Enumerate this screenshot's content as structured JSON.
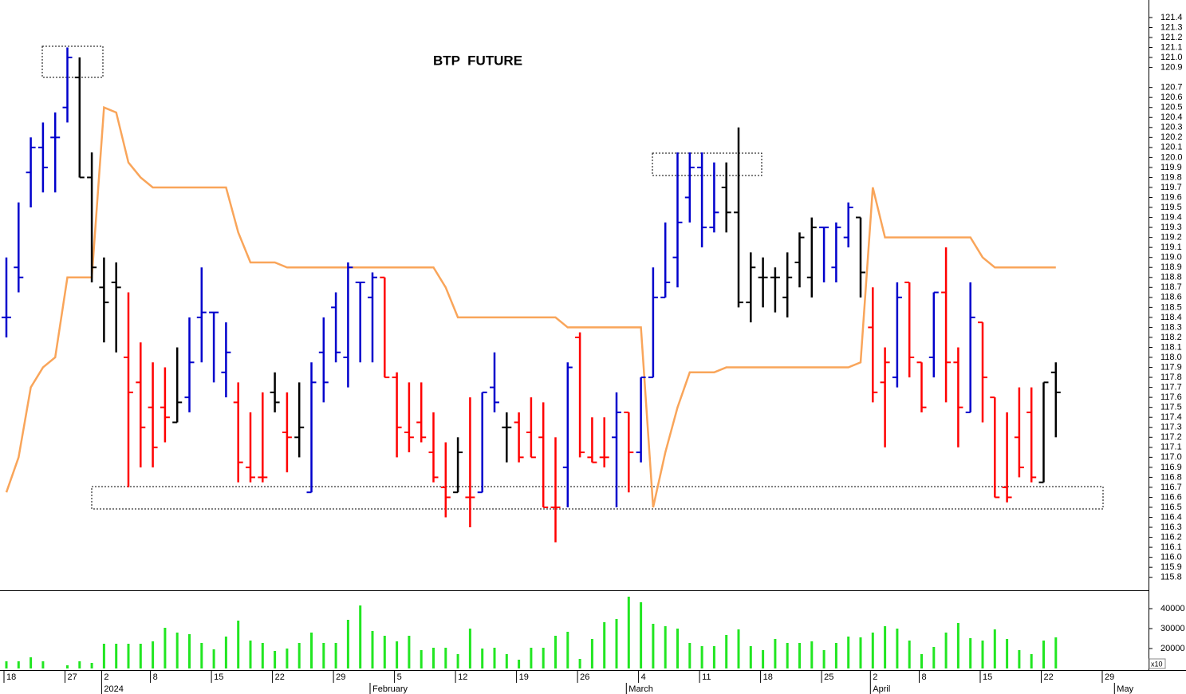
{
  "chart_data": [
    {
      "type": "ohlc",
      "title": "BTP  FUTURE",
      "categories": [
        "18",
        null,
        null,
        null,
        null,
        "27",
        null,
        null,
        "2",
        null,
        null,
        null,
        "8",
        null,
        null,
        null,
        null,
        "15",
        null,
        null,
        null,
        null,
        "22",
        null,
        null,
        null,
        null,
        "29",
        null,
        null,
        null,
        null,
        "5",
        null,
        null,
        null,
        null,
        "12",
        null,
        null,
        null,
        null,
        "19",
        null,
        null,
        null,
        null,
        "26",
        null,
        null,
        null,
        null,
        "4",
        null,
        null,
        null,
        null,
        "11",
        null,
        null,
        null,
        null,
        "18",
        null,
        null,
        null,
        null,
        "25",
        null,
        null,
        null,
        "2",
        null,
        null,
        null,
        "8",
        null,
        null,
        null,
        null,
        "15",
        null,
        null,
        null,
        null,
        "22",
        null,
        null,
        null,
        null,
        "29",
        null,
        null
      ],
      "category_groups": [
        null,
        null,
        null,
        null,
        null,
        null,
        null,
        null,
        "2024",
        null,
        null,
        null,
        null,
        null,
        null,
        null,
        null,
        null,
        null,
        null,
        null,
        null,
        null,
        null,
        null,
        null,
        null,
        null,
        null,
        null,
        "February",
        null,
        null,
        null,
        null,
        null,
        null,
        null,
        null,
        null,
        null,
        null,
        null,
        null,
        null,
        null,
        null,
        null,
        null,
        null,
        null,
        "March",
        null,
        null,
        null,
        null,
        null,
        null,
        null,
        null,
        null,
        null,
        null,
        null,
        null,
        null,
        null,
        null,
        null,
        null,
        null,
        "April",
        null,
        null,
        null,
        null,
        null,
        null,
        null,
        null,
        null,
        null,
        null,
        null,
        null,
        null,
        null,
        null,
        null,
        null,
        null,
        "May"
      ],
      "open": [
        118.4,
        118.9,
        119.85,
        120.1,
        120.2,
        120.5,
        120.8,
        119.8,
        118.7,
        118.75,
        118.0,
        117.75,
        117.5,
        117.5,
        117.35,
        117.6,
        118.4,
        118.45,
        117.85,
        117.55,
        116.9,
        116.8,
        117.65,
        117.25,
        117.2,
        116.65,
        118.05,
        118.5,
        118.0,
        118.75,
        118.6,
        118.8,
        117.8,
        117.25,
        117.35,
        117.05,
        116.7,
        116.65,
        116.6,
        116.65,
        117.7,
        117.3,
        117.35,
        117.25,
        117.2,
        116.5,
        116.9,
        118.2,
        117.0,
        117.0,
        117.2,
        117.45,
        117.05,
        117.8,
        118.6,
        119.0,
        119.6,
        119.9,
        119.3,
        119.7,
        119.45,
        118.55,
        118.8,
        118.8,
        118.6,
        118.95,
        118.8,
        119.3,
        118.9,
        119.2,
        119.4,
        118.3,
        117.75,
        117.8,
        118.75,
        117.95,
        118.0,
        118.65,
        117.95,
        117.45,
        118.35,
        117.6,
        116.7,
        117.2,
        117.45,
        116.75,
        117.85,
        null,
        null,
        null,
        null,
        null,
        null
      ],
      "high": [
        119.0,
        119.55,
        120.2,
        120.35,
        120.45,
        121.1,
        121.0,
        120.05,
        119.0,
        118.95,
        118.65,
        118.15,
        117.95,
        117.9,
        118.1,
        118.4,
        118.9,
        118.45,
        118.35,
        117.75,
        117.45,
        117.65,
        117.85,
        117.65,
        117.75,
        117.95,
        118.4,
        118.65,
        118.95,
        118.75,
        118.85,
        118.8,
        117.85,
        117.75,
        117.75,
        117.45,
        117.15,
        117.2,
        117.6,
        117.65,
        118.05,
        117.45,
        117.45,
        117.6,
        117.55,
        117.2,
        117.95,
        118.25,
        117.4,
        117.4,
        117.65,
        117.45,
        117.8,
        118.9,
        119.35,
        120.05,
        120.05,
        120.05,
        119.95,
        119.95,
        120.3,
        119.05,
        119.0,
        118.9,
        119.05,
        119.25,
        119.4,
        119.3,
        119.35,
        119.55,
        119.4,
        118.7,
        118.1,
        118.75,
        118.75,
        117.95,
        118.65,
        119.1,
        118.1,
        118.75,
        118.35,
        117.6,
        117.45,
        117.7,
        117.7,
        117.75,
        117.95,
        null,
        null,
        null,
        null,
        null,
        null
      ],
      "low": [
        118.2,
        118.65,
        119.5,
        119.65,
        119.65,
        120.35,
        119.8,
        118.75,
        118.15,
        118.05,
        116.7,
        116.9,
        116.9,
        117.15,
        117.35,
        117.45,
        117.95,
        117.75,
        117.6,
        116.75,
        116.75,
        116.75,
        117.45,
        116.85,
        117.0,
        116.65,
        117.55,
        117.95,
        117.7,
        117.95,
        117.95,
        117.8,
        117.0,
        117.05,
        117.15,
        116.75,
        116.4,
        116.65,
        116.3,
        116.65,
        117.45,
        116.95,
        116.95,
        117.0,
        116.5,
        116.15,
        116.5,
        117.0,
        116.95,
        116.9,
        116.5,
        116.65,
        116.95,
        117.8,
        118.6,
        118.7,
        119.35,
        119.1,
        119.25,
        119.25,
        118.5,
        118.35,
        118.5,
        118.45,
        118.4,
        118.7,
        118.6,
        118.75,
        118.75,
        119.1,
        118.6,
        117.55,
        117.1,
        117.7,
        117.8,
        117.45,
        117.8,
        117.55,
        117.1,
        117.45,
        117.35,
        116.6,
        116.55,
        116.8,
        116.75,
        116.75,
        117.2,
        null,
        null,
        null,
        null,
        null,
        null
      ],
      "close": [
        118.4,
        118.8,
        120.1,
        119.9,
        120.2,
        121.0,
        119.8,
        118.9,
        118.55,
        118.7,
        117.65,
        117.3,
        117.1,
        117.4,
        117.55,
        117.95,
        118.45,
        118.45,
        118.05,
        116.95,
        116.8,
        116.8,
        117.55,
        117.2,
        117.3,
        117.75,
        117.75,
        118.05,
        118.9,
        118.75,
        118.8,
        117.8,
        117.3,
        117.2,
        117.2,
        116.8,
        116.6,
        117.05,
        116.6,
        117.65,
        117.55,
        117.3,
        117.0,
        117.0,
        116.5,
        116.5,
        117.9,
        117.05,
        116.95,
        117.0,
        117.45,
        117.05,
        117.8,
        118.6,
        118.75,
        119.35,
        119.9,
        119.3,
        119.45,
        119.45,
        118.55,
        118.9,
        118.8,
        118.8,
        118.8,
        119.2,
        119.3,
        119.3,
        119.3,
        119.5,
        118.85,
        117.65,
        117.95,
        118.6,
        118.0,
        117.5,
        118.65,
        117.95,
        117.5,
        118.4,
        117.8,
        116.6,
        116.6,
        116.9,
        116.8,
        117.75,
        117.65,
        null,
        null,
        null,
        null,
        null,
        null
      ],
      "colors": [
        "#0000cc",
        "#0000cc",
        "#0000cc",
        "#0000cc",
        "#0000cc",
        "#0000cc",
        "#000000",
        "#000000",
        "#000000",
        "#000000",
        "#ff0000",
        "#ff0000",
        "#ff0000",
        "#ff0000",
        "#000000",
        "#0000cc",
        "#0000cc",
        "#0000cc",
        "#0000cc",
        "#ff0000",
        "#ff0000",
        "#ff0000",
        "#000000",
        "#ff0000",
        "#000000",
        "#0000cc",
        "#0000cc",
        "#0000cc",
        "#0000cc",
        "#0000cc",
        "#0000cc",
        "#ff0000",
        "#ff0000",
        "#ff0000",
        "#ff0000",
        "#ff0000",
        "#ff0000",
        "#000000",
        "#ff0000",
        "#0000cc",
        "#0000cc",
        "#000000",
        "#ff0000",
        "#ff0000",
        "#ff0000",
        "#ff0000",
        "#0000cc",
        "#ff0000",
        "#ff0000",
        "#ff0000",
        "#0000cc",
        "#ff0000",
        "#0000cc",
        "#0000cc",
        "#0000cc",
        "#0000cc",
        "#0000cc",
        "#0000cc",
        "#0000cc",
        "#000000",
        "#000000",
        "#000000",
        "#000000",
        "#000000",
        "#000000",
        "#000000",
        "#000000",
        "#0000cc",
        "#0000cc",
        "#0000cc",
        "#000000",
        "#ff0000",
        "#ff0000",
        "#0000cc",
        "#ff0000",
        "#ff0000",
        "#0000cc",
        "#ff0000",
        "#ff0000",
        "#0000cc",
        "#ff0000",
        "#ff0000",
        "#ff0000",
        "#ff0000",
        "#ff0000",
        "#000000",
        "#000000",
        null,
        null,
        null,
        null,
        null,
        null
      ],
      "line": {
        "color": "#f9a55a",
        "values": [
          116.65,
          117.0,
          117.7,
          117.9,
          118.0,
          118.8,
          118.8,
          118.8,
          120.5,
          120.45,
          119.95,
          119.8,
          119.7,
          119.7,
          119.7,
          119.7,
          119.7,
          119.7,
          119.7,
          119.25,
          118.95,
          118.95,
          118.95,
          118.9,
          118.9,
          118.9,
          118.9,
          118.9,
          118.9,
          118.9,
          118.9,
          118.9,
          118.9,
          118.9,
          118.9,
          118.9,
          118.7,
          118.4,
          118.4,
          118.4,
          118.4,
          118.4,
          118.4,
          118.4,
          118.4,
          118.4,
          118.3,
          118.3,
          118.3,
          118.3,
          118.3,
          118.3,
          118.3,
          116.5,
          117.05,
          117.5,
          117.85,
          117.85,
          117.85,
          117.9,
          117.9,
          117.9,
          117.9,
          117.9,
          117.9,
          117.9,
          117.9,
          117.9,
          117.9,
          117.9,
          117.95,
          119.7,
          119.2,
          119.2,
          119.2,
          119.2,
          119.2,
          119.2,
          119.2,
          119.2,
          119.0,
          118.9,
          118.9,
          118.9,
          118.9,
          118.9,
          118.9,
          null,
          null,
          null,
          null,
          null,
          null
        ]
      },
      "ylim": [
        115.67,
        121.575
      ],
      "yticks": [
        115.8,
        115.9,
        {
          "value": 116.0,
          "label": "116.0"
        },
        116.1,
        116.2,
        116.3,
        116.4,
        116.5,
        116.6,
        116.7,
        116.8,
        116.9,
        {
          "value": 117.0,
          "label": "117.0"
        },
        117.1,
        117.2,
        117.3,
        117.4,
        117.5,
        117.6,
        117.7,
        117.8,
        117.9,
        {
          "value": 118.0,
          "label": "118.0"
        },
        118.1,
        118.2,
        118.3,
        118.4,
        118.5,
        118.6,
        118.7,
        118.8,
        118.9,
        {
          "value": 119.0,
          "label": "119.0"
        },
        119.1,
        119.2,
        119.3,
        119.4,
        119.5,
        119.6,
        119.7,
        119.8,
        119.9,
        {
          "value": 120.0,
          "label": "120.0"
        },
        120.1,
        120.2,
        120.3,
        120.4,
        120.5,
        120.6,
        120.7,
        120.9,
        {
          "value": 121.0,
          "label": "121.0"
        },
        121.1,
        121.2,
        121.3,
        121.4
      ]
    },
    {
      "type": "bar",
      "color": "#22e622",
      "unit_label": "x10",
      "values": [
        13600,
        13600,
        15600,
        13600,
        10000,
        11600,
        13600,
        12800,
        22400,
        22400,
        22400,
        22400,
        23600,
        30400,
        28000,
        27200,
        22800,
        19600,
        26000,
        34000,
        24000,
        22800,
        18800,
        20000,
        22800,
        28000,
        22800,
        22800,
        34400,
        41600,
        28800,
        26400,
        23600,
        26400,
        19200,
        20400,
        20400,
        17200,
        30000,
        20000,
        20400,
        17200,
        14400,
        20400,
        20400,
        26400,
        28400,
        14800,
        24800,
        33200,
        34800,
        46000,
        43200,
        32400,
        31200,
        30000,
        22800,
        21200,
        21200,
        26800,
        29600,
        21200,
        19200,
        24800,
        22800,
        22800,
        23600,
        19200,
        22800,
        26000,
        25600,
        28000,
        31200,
        30000,
        24000,
        17200,
        20800,
        28000,
        32800,
        25200,
        24000,
        29600,
        24800,
        19200,
        17200,
        24000,
        25600,
        null,
        null,
        null,
        null,
        null,
        null
      ],
      "ylim": [
        10000,
        48400
      ],
      "yticks": [
        20000,
        30000,
        40000
      ]
    }
  ]
}
